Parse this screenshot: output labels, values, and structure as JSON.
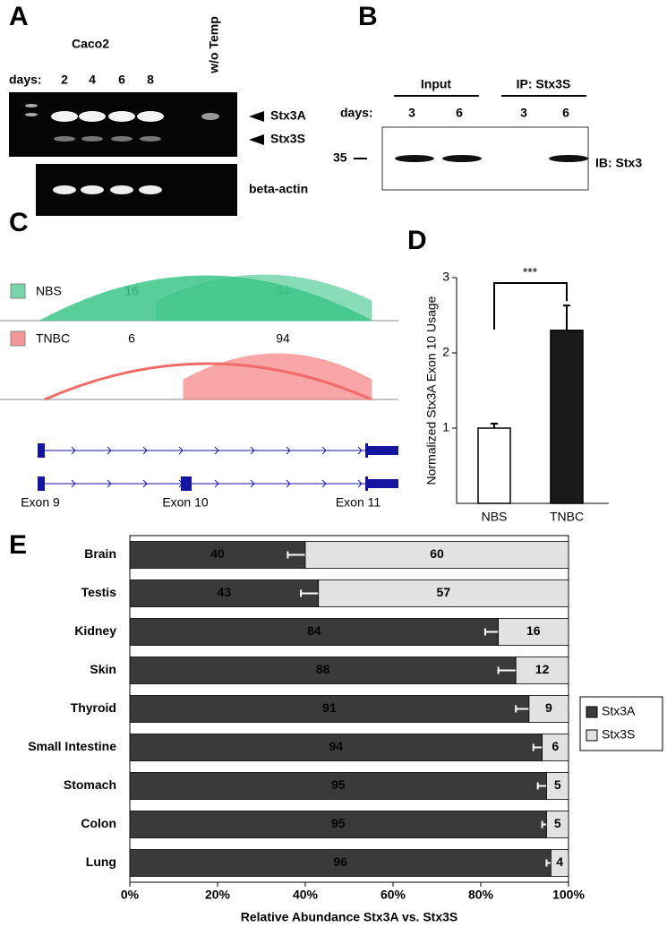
{
  "panels": {
    "A": {
      "label": "A",
      "cell_line": "Caco2",
      "days_label": "days:",
      "days": [
        "2",
        "4",
        "6",
        "8"
      ],
      "control": "w/o Temp",
      "bands": [
        "Stx3A",
        "Stx3S"
      ],
      "loading": "beta-actin"
    },
    "B": {
      "label": "B",
      "groups": [
        "Input",
        "IP: Stx3S"
      ],
      "days_label": "days:",
      "days": [
        "3",
        "6",
        "3",
        "6"
      ],
      "marker": "35",
      "blot": "IB: Stx3"
    },
    "C": {
      "label": "C",
      "tracks": [
        {
          "name": "NBS",
          "color": "#3cc68a",
          "values": [
            16,
            84
          ]
        },
        {
          "name": "TNBC",
          "color": "#f26b6b",
          "values": [
            6,
            94
          ]
        }
      ],
      "exons": [
        "Exon 9",
        "Exon 10",
        "Exon 11"
      ]
    }
  },
  "chart_data": [
    {
      "type": "bar",
      "label": "D",
      "ylabel": "Normalized Stx3A Exon 10 Usage",
      "annotation": "***",
      "categories": [
        "NBS",
        "TNBC"
      ],
      "values": [
        1.0,
        2.3
      ],
      "errors": [
        0.06,
        0.33
      ],
      "colors": [
        "#ffffff",
        "#1a1a1a"
      ],
      "ylim": [
        0,
        3
      ],
      "yticks": [
        1,
        2,
        3
      ]
    },
    {
      "type": "stacked_barh",
      "label": "E",
      "xlabel": "Relative Abundance Stx3A vs. Stx3S",
      "categories": [
        "Brain",
        "Testis",
        "Kidney",
        "Skin",
        "Thyroid",
        "Small Intestine",
        "Stomach",
        "Colon",
        "Lung"
      ],
      "series": [
        {
          "name": "Stx3A",
          "color": "#3a3a3a",
          "values": [
            40,
            43,
            84,
            88,
            91,
            94,
            95,
            95,
            96
          ],
          "errors": [
            4,
            4,
            3,
            4,
            3,
            2,
            2,
            1,
            1
          ]
        },
        {
          "name": "Stx3S",
          "color": "#e2e2e2",
          "values": [
            60,
            57,
            16,
            12,
            9,
            6,
            5,
            5,
            4
          ]
        }
      ],
      "xlim": [
        0,
        100
      ],
      "xticks": [
        {
          "value": 0,
          "label": "0%"
        },
        {
          "value": 20,
          "label": "20%"
        },
        {
          "value": 40,
          "label": "40%"
        },
        {
          "value": 60,
          "label": "60%"
        },
        {
          "value": 80,
          "label": "80%"
        },
        {
          "value": 100,
          "label": "100%"
        }
      ],
      "legend": "right"
    }
  ]
}
